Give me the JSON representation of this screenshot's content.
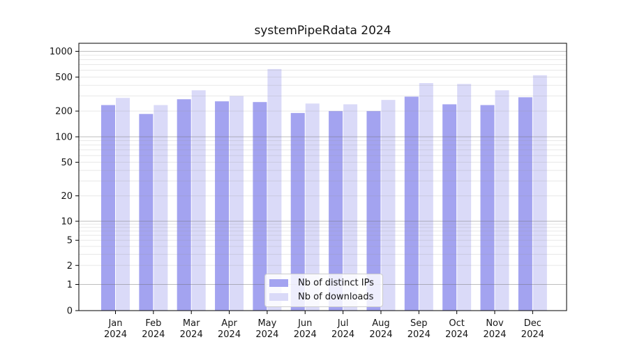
{
  "chart_data": {
    "type": "bar",
    "title": "systemPipeRdata 2024",
    "xlabel": "",
    "ylabel": "",
    "months": [
      "Jan",
      "Feb",
      "Mar",
      "Apr",
      "May",
      "Jun",
      "Jul",
      "Aug",
      "Sep",
      "Oct",
      "Nov",
      "Dec"
    ],
    "year": "2024",
    "series": [
      {
        "name": "Nb of distinct IPs",
        "color": "#a3a3f0",
        "values": [
          235,
          185,
          275,
          260,
          255,
          190,
          200,
          200,
          295,
          240,
          235,
          290
        ]
      },
      {
        "name": "Nb of downloads",
        "color": "#dadaf8",
        "values": [
          285,
          235,
          350,
          300,
          620,
          245,
          240,
          270,
          425,
          415,
          350,
          525
        ]
      }
    ],
    "y_axis": {
      "scale": "log-with-zero",
      "range": [
        0,
        1000
      ],
      "ticks": [
        0,
        1,
        2,
        5,
        10,
        20,
        50,
        100,
        200,
        500,
        1000
      ],
      "grid": "horizontal major (powers of 10) + log minor lines"
    },
    "legend": {
      "position": "lower center inside plot"
    }
  }
}
